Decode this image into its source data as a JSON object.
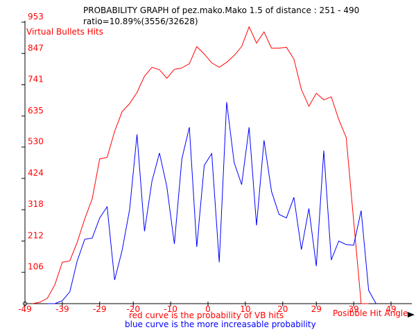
{
  "chart_data": {
    "type": "line",
    "title": "PROBABILITY GRAPH  of  pez.mako.Mako 1.5 of distance : 251 - 490",
    "subtitle": "ratio=10.89%(3556/32628)",
    "ylabel": "Virtual Bullets Hits",
    "xlabel": "Posibble Hit Angle",
    "note_red": "red curve is the probability of VB hits",
    "note_blue": "blue curve is the more increasable probability",
    "xlim": [
      -49,
      49
    ],
    "ylim": [
      0,
      953
    ],
    "x_ticks": [
      -49,
      -39,
      -29,
      -20,
      -10,
      0,
      10,
      20,
      29,
      39,
      49
    ],
    "y_ticks": [
      106,
      212,
      318,
      424,
      530,
      635,
      741,
      847,
      953
    ],
    "colors": {
      "red": "#ff0000",
      "blue": "#0000ff",
      "axis": "#000000"
    },
    "series": [
      {
        "color": "#ff0000",
        "x": [
          -47,
          -45,
          -43,
          -41,
          -39,
          -37,
          -35,
          -33,
          -31,
          -29,
          -27,
          -25,
          -23,
          -21,
          -19,
          -17,
          -15,
          -13,
          -11,
          -9,
          -7,
          -5,
          -3,
          -1,
          1,
          3,
          5,
          7,
          9,
          11,
          13,
          15,
          17,
          19,
          21,
          23,
          25,
          27,
          29,
          31,
          33,
          35,
          37,
          39,
          41,
          43
        ],
        "values": [
          0,
          5,
          18,
          64,
          140,
          145,
          208,
          287,
          355,
          490,
          495,
          583,
          650,
          677,
          715,
          770,
          800,
          792,
          763,
          793,
          798,
          812,
          870,
          845,
          815,
          800,
          817,
          840,
          870,
          937,
          882,
          920,
          865,
          865,
          868,
          828,
          725,
          668,
          712,
          690,
          700,
          623,
          563,
          280,
          0,
          0
        ]
      },
      {
        "color": "#0000ff",
        "x": [
          -43,
          -41,
          -39,
          -37,
          -35,
          -33,
          -31,
          -29,
          -27,
          -25,
          -23,
          -21,
          -19,
          -17,
          -15,
          -13,
          -11,
          -9,
          -7,
          -5,
          -3,
          -1,
          1,
          3,
          5,
          7,
          9,
          11,
          13,
          15,
          17,
          19,
          21,
          23,
          25,
          27,
          29,
          31,
          33,
          35,
          37,
          39,
          41,
          43,
          45
        ],
        "values": [
          0,
          0,
          10,
          40,
          145,
          218,
          222,
          290,
          328,
          80,
          180,
          318,
          573,
          245,
          415,
          510,
          395,
          202,
          490,
          597,
          192,
          468,
          508,
          140,
          682,
          478,
          403,
          597,
          265,
          553,
          380,
          302,
          290,
          360,
          183,
          322,
          127,
          518,
          148,
          212,
          200,
          198,
          315,
          45,
          0
        ]
      }
    ]
  }
}
